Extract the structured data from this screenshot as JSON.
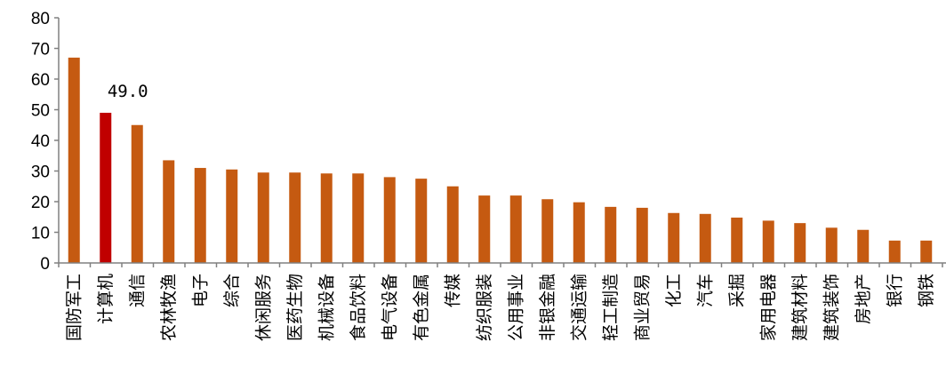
{
  "chart_data": {
    "type": "bar",
    "title": "",
    "xlabel": "",
    "ylabel": "",
    "categories": [
      "国防军工",
      "计算机",
      "通信",
      "农林牧渔",
      "电子",
      "综合",
      "休闲服务",
      "医药生物",
      "机械设备",
      "食品饮料",
      "电气设备",
      "有色金属",
      "传媒",
      "纺织服装",
      "公用事业",
      "非银金融",
      "交通运输",
      "轻工制造",
      "商业贸易",
      "化工",
      "汽车",
      "采掘",
      "家用电器",
      "建筑材料",
      "建筑装饰",
      "房地产",
      "银行",
      "钢铁"
    ],
    "values": [
      67.0,
      49.0,
      45.0,
      33.5,
      31.0,
      30.5,
      29.5,
      29.5,
      29.2,
      29.2,
      28.0,
      27.5,
      25.0,
      22.0,
      22.0,
      20.8,
      19.8,
      18.3,
      18.0,
      16.3,
      16.0,
      14.8,
      13.8,
      13.0,
      11.5,
      10.8,
      7.3,
      7.3
    ],
    "ylim": [
      0,
      80
    ],
    "yticks": [
      0,
      10,
      20,
      30,
      40,
      50,
      60,
      70,
      80
    ],
    "grid": false,
    "legend": "none",
    "colors": {
      "default": "#C55A11",
      "highlight": "#C00000",
      "axis": "#808080"
    },
    "highlight_index": 1,
    "annotations": [
      {
        "category": "计算机",
        "text": "49.0"
      }
    ]
  }
}
